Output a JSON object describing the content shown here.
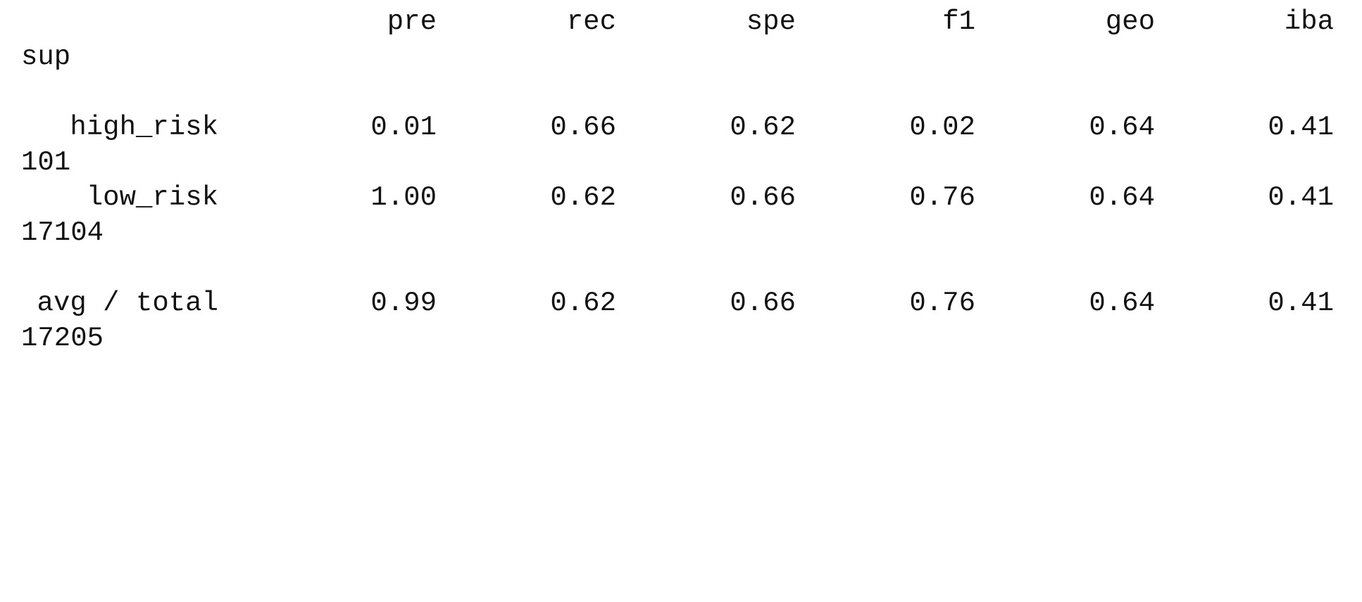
{
  "report": {
    "header": {
      "columns": [
        "pre",
        "rec",
        "spe",
        "f1",
        "geo",
        "iba"
      ],
      "support_column": "sup"
    },
    "rows": [
      {
        "label": "high_risk",
        "values": [
          "0.01",
          "0.66",
          "0.62",
          "0.02",
          "0.64",
          "0.41"
        ],
        "support": "101"
      },
      {
        "label": "low_risk",
        "values": [
          "1.00",
          "0.62",
          "0.66",
          "0.76",
          "0.64",
          "0.41"
        ],
        "support": "17104"
      }
    ],
    "total": {
      "label": "avg / total",
      "values": [
        "0.99",
        "0.62",
        "0.66",
        "0.76",
        "0.64",
        "0.41"
      ],
      "support": "17205"
    }
  }
}
